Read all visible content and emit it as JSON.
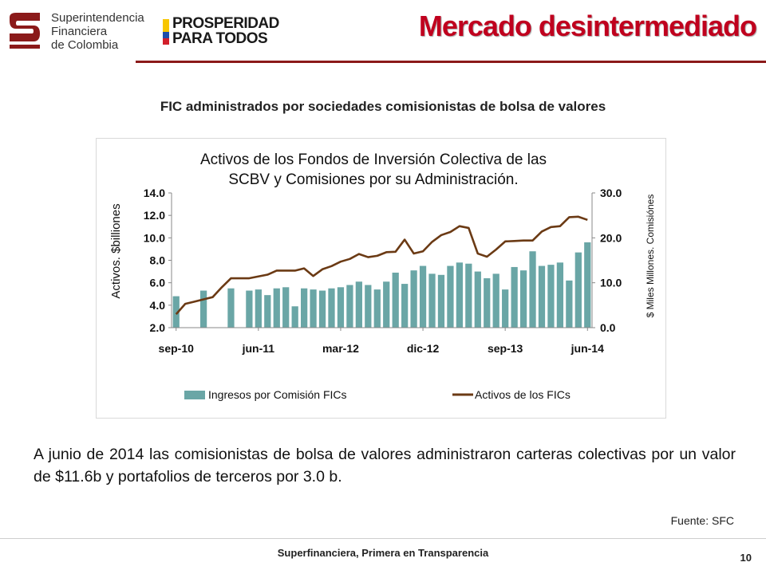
{
  "header": {
    "sfc_logo_lines": [
      "Superintendencia",
      "Financiera",
      "de Colombia"
    ],
    "pp_logo_lines": [
      "PROSPERIDAD",
      "PARA TODOS"
    ],
    "title": "Mercado desintermediado"
  },
  "subtitle": "FIC administrados por sociedades comisionistas de bolsa de valores",
  "body_text": "A junio de 2014 las comisionistas de bolsa de valores administraron carteras colectivas por un valor de $11.6b y portafolios de terceros por 3.0 b.",
  "source": "Fuente: SFC",
  "footer": {
    "text": "Superfinanciera, Primera en Transparencia",
    "page": "10"
  },
  "chart_data": {
    "type": "bar+line",
    "title_lines": [
      "Activos de los Fondos de Inversión Colectiva de las",
      "SCBV y Comisiones por su Administración."
    ],
    "ylabel_left": "Activos. $billiones",
    "ylabel_right": "$ Miles Millones. Comisiónes",
    "left_axis": {
      "min": 2.0,
      "max": 14.0,
      "ticks": [
        "2.0",
        "4.0",
        "6.0",
        "8.0",
        "10.0",
        "12.0",
        "14.0"
      ]
    },
    "right_axis": {
      "min": 0.0,
      "max": 30.0,
      "ticks": [
        "0.0",
        "10.0",
        "20.0",
        "30.0"
      ]
    },
    "x_tick_labels": [
      "sep-10",
      "jun-11",
      "mar-12",
      "dic-12",
      "sep-13",
      "jun-14"
    ],
    "x_tick_positions": [
      0,
      9,
      18,
      27,
      36,
      45
    ],
    "n_periods": 46,
    "bar_series": {
      "name": "Ingresos por Comisión FICs",
      "color": "#6aa6a6",
      "axis": "left",
      "values": [
        4.8,
        null,
        null,
        5.3,
        null,
        null,
        5.5,
        null,
        5.3,
        5.4,
        4.9,
        5.5,
        5.6,
        3.9,
        5.5,
        5.4,
        5.3,
        5.5,
        5.6,
        5.8,
        6.1,
        5.8,
        5.4,
        6.1,
        6.9,
        5.9,
        7.1,
        7.5,
        6.8,
        6.7,
        7.5,
        7.8,
        7.7,
        7.0,
        6.4,
        6.8,
        5.4,
        7.4,
        7.1,
        8.8,
        7.5,
        7.6,
        7.8,
        6.2,
        8.7,
        9.6
      ]
    },
    "line_series": {
      "name": "Activos de los FICs",
      "color": "#6b3a14",
      "axis": "right",
      "values": [
        3.0,
        5.3,
        5.8,
        6.3,
        6.8,
        9.0,
        11.0,
        11.0,
        11.0,
        11.4,
        11.8,
        12.7,
        12.7,
        12.7,
        13.2,
        11.5,
        13.0,
        13.7,
        14.7,
        15.3,
        16.4,
        15.7,
        16.0,
        16.8,
        16.9,
        19.6,
        16.5,
        17.0,
        19.1,
        20.6,
        21.3,
        22.6,
        22.2,
        16.5,
        15.8,
        17.4,
        19.2,
        19.3,
        19.4,
        19.4,
        21.4,
        22.4,
        22.6,
        24.6,
        24.7,
        24.0
      ]
    },
    "legend_position": "bottom",
    "grid": false
  }
}
